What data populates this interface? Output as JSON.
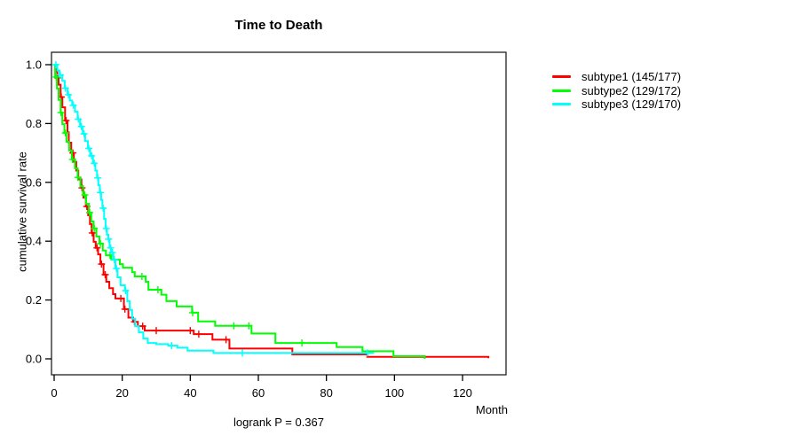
{
  "chart_data": {
    "type": "line",
    "subtype": "kaplan-meier-step-survival",
    "title": "Time to Death",
    "xlabel": "Month",
    "ylabel": "cumulative survival rate",
    "annotation": "logrank P = 0.367",
    "xlim": [
      0,
      133
    ],
    "ylim": [
      0,
      1.0
    ],
    "x_ticks": [
      0,
      20,
      40,
      60,
      80,
      100,
      120
    ],
    "y_ticks": [
      0.0,
      0.2,
      0.4,
      0.6,
      0.8,
      1.0
    ],
    "grid": false,
    "legend_position": "right",
    "axis_color": "#303030",
    "series": [
      {
        "name": "subtype1 (145/177)",
        "color": "#ff0000",
        "steps": [
          [
            0,
            1.0
          ],
          [
            0.4,
            0.977
          ],
          [
            0.9,
            0.955
          ],
          [
            1.3,
            0.932
          ],
          [
            1.9,
            0.89
          ],
          [
            2.4,
            0.855
          ],
          [
            3.2,
            0.81
          ],
          [
            3.9,
            0.77
          ],
          [
            4.3,
            0.735
          ],
          [
            5.0,
            0.7
          ],
          [
            5.8,
            0.67
          ],
          [
            6.5,
            0.64
          ],
          [
            7.1,
            0.61
          ],
          [
            8.0,
            0.581
          ],
          [
            8.6,
            0.548
          ],
          [
            9.3,
            0.518
          ],
          [
            10.0,
            0.488
          ],
          [
            10.5,
            0.458
          ],
          [
            11.0,
            0.428
          ],
          [
            11.6,
            0.398
          ],
          [
            12.2,
            0.377
          ],
          [
            12.9,
            0.355
          ],
          [
            13.6,
            0.322
          ],
          [
            14.5,
            0.286
          ],
          [
            15.3,
            0.262
          ],
          [
            16.2,
            0.24
          ],
          [
            17.3,
            0.22
          ],
          [
            18.0,
            0.205
          ],
          [
            20.5,
            0.169
          ],
          [
            21.8,
            0.14
          ],
          [
            23.2,
            0.126
          ],
          [
            24.6,
            0.111
          ],
          [
            26.6,
            0.096
          ],
          [
            41.0,
            0.084
          ],
          [
            46.5,
            0.065
          ],
          [
            51.5,
            0.035
          ],
          [
            70.0,
            0.015
          ],
          [
            92.0,
            0.007
          ],
          [
            127.6,
            0.002
          ]
        ],
        "censor_times": [
          1.1,
          2.1,
          3.5,
          5.5,
          8.2,
          9.6,
          11.2,
          12.6,
          13.9,
          15.0,
          19.6,
          20.8,
          23.6,
          26.0,
          30.0,
          40.0,
          42.5,
          50.5
        ]
      },
      {
        "name": "subtype2 (129/172)",
        "color": "#00ff00",
        "steps": [
          [
            0,
            1.0
          ],
          [
            0.3,
            0.958
          ],
          [
            0.8,
            0.919
          ],
          [
            1.3,
            0.88
          ],
          [
            1.9,
            0.837
          ],
          [
            2.4,
            0.798
          ],
          [
            3.0,
            0.768
          ],
          [
            3.6,
            0.738
          ],
          [
            4.4,
            0.708
          ],
          [
            5.2,
            0.678
          ],
          [
            6.1,
            0.648
          ],
          [
            6.9,
            0.617
          ],
          [
            7.7,
            0.587
          ],
          [
            8.5,
            0.557
          ],
          [
            9.4,
            0.527
          ],
          [
            10.2,
            0.497
          ],
          [
            10.9,
            0.467
          ],
          [
            11.6,
            0.443
          ],
          [
            12.4,
            0.416
          ],
          [
            13.3,
            0.392
          ],
          [
            14.3,
            0.368
          ],
          [
            15.2,
            0.352
          ],
          [
            16.8,
            0.337
          ],
          [
            19.3,
            0.322
          ],
          [
            20.2,
            0.31
          ],
          [
            22.9,
            0.295
          ],
          [
            23.7,
            0.28
          ],
          [
            26.9,
            0.262
          ],
          [
            27.7,
            0.235
          ],
          [
            31.5,
            0.218
          ],
          [
            33.0,
            0.196
          ],
          [
            36.0,
            0.178
          ],
          [
            40.5,
            0.157
          ],
          [
            42.3,
            0.127
          ],
          [
            47.3,
            0.112
          ],
          [
            58.0,
            0.086
          ],
          [
            65.0,
            0.054
          ],
          [
            83.0,
            0.04
          ],
          [
            90.6,
            0.026
          ],
          [
            99.7,
            0.009
          ],
          [
            108.9,
            0.0
          ]
        ],
        "censor_times": [
          0.6,
          2.0,
          3.3,
          5.4,
          7.0,
          9.0,
          10.4,
          11.8,
          13.6,
          16.4,
          25.8,
          30.5,
          40.7,
          52.8,
          57.2,
          72.8
        ]
      },
      {
        "name": "subtype3 (129/170)",
        "color": "#00ffff",
        "steps": [
          [
            0,
            1.0
          ],
          [
            0.9,
            0.98
          ],
          [
            1.6,
            0.965
          ],
          [
            2.4,
            0.945
          ],
          [
            3.1,
            0.92
          ],
          [
            3.9,
            0.898
          ],
          [
            4.6,
            0.878
          ],
          [
            5.3,
            0.862
          ],
          [
            6.1,
            0.84
          ],
          [
            6.9,
            0.815
          ],
          [
            7.6,
            0.79
          ],
          [
            8.4,
            0.765
          ],
          [
            9.1,
            0.74
          ],
          [
            9.9,
            0.715
          ],
          [
            10.6,
            0.69
          ],
          [
            11.4,
            0.665
          ],
          [
            12.1,
            0.64
          ],
          [
            12.6,
            0.615
          ],
          [
            13.0,
            0.59
          ],
          [
            13.4,
            0.565
          ],
          [
            13.8,
            0.54
          ],
          [
            14.2,
            0.512
          ],
          [
            14.7,
            0.476
          ],
          [
            15.1,
            0.443
          ],
          [
            15.5,
            0.422
          ],
          [
            15.9,
            0.407
          ],
          [
            16.3,
            0.377
          ],
          [
            16.8,
            0.361
          ],
          [
            17.4,
            0.337
          ],
          [
            18.0,
            0.307
          ],
          [
            18.6,
            0.277
          ],
          [
            19.5,
            0.25
          ],
          [
            20.8,
            0.232
          ],
          [
            21.5,
            0.196
          ],
          [
            22.2,
            0.166
          ],
          [
            22.9,
            0.136
          ],
          [
            23.8,
            0.111
          ],
          [
            24.9,
            0.09
          ],
          [
            26.2,
            0.069
          ],
          [
            27.5,
            0.054
          ],
          [
            30.0,
            0.05
          ],
          [
            33.5,
            0.045
          ],
          [
            36.2,
            0.038
          ],
          [
            39.2,
            0.028
          ],
          [
            46.8,
            0.02
          ],
          [
            94.0,
            0.02
          ]
        ],
        "censor_times": [
          0.5,
          1.8,
          3.3,
          4.2,
          5.6,
          7.1,
          8.0,
          8.8,
          10.2,
          11.0,
          11.8,
          12.8,
          13.6,
          14.4,
          15.3,
          16.0,
          16.6,
          17.1,
          17.7,
          18.3,
          21.0,
          34.5,
          55.3,
          92.0
        ]
      }
    ]
  }
}
